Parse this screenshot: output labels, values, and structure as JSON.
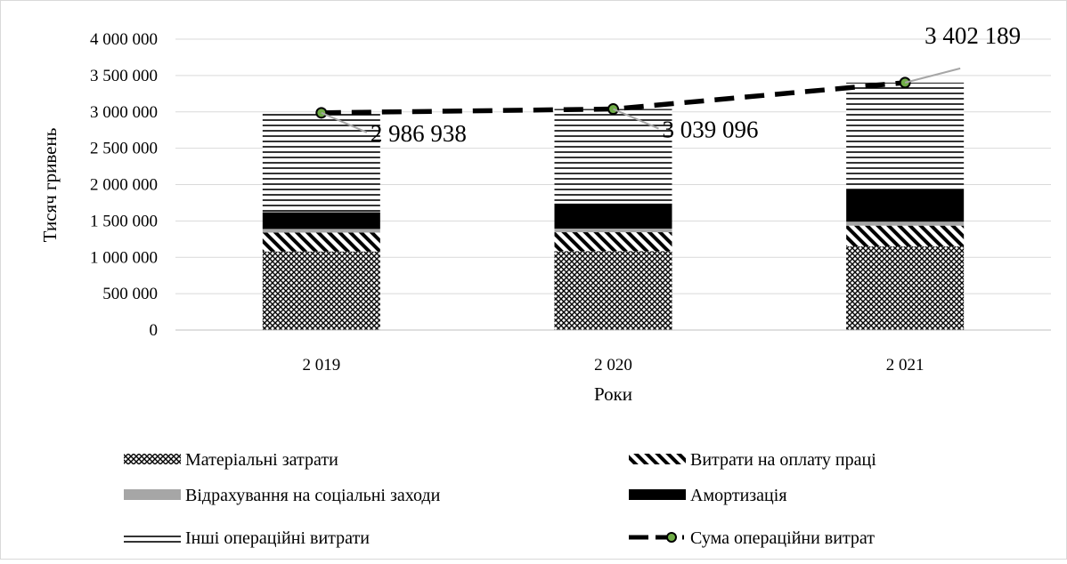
{
  "chart_data": {
    "type": "bar",
    "stacked": true,
    "categories": [
      "2 019",
      "2 020",
      "2 021"
    ],
    "series": [
      {
        "name": "Матеріальні затрати",
        "values": [
          1080000,
          1085000,
          1150000
        ],
        "pattern": "crosshatch"
      },
      {
        "name": "Витрати на оплату праці",
        "values": [
          260000,
          260000,
          285000
        ],
        "pattern": "diagonal"
      },
      {
        "name": "Відрахування на соціальні заходи",
        "values": [
          50000,
          50000,
          55000
        ],
        "pattern": "solid-gray",
        "color": "#a6a6a6"
      },
      {
        "name": "Амортизація",
        "values": [
          230000,
          345000,
          450000
        ],
        "pattern": "solid-black",
        "color": "#000000"
      },
      {
        "name": "Інші операційні витрати",
        "values": [
          1366938,
          1299096,
          1462189
        ],
        "pattern": "horizontal-lines"
      }
    ],
    "line_series": {
      "name": "Сума операційни витрат",
      "values": [
        2986938,
        3039096,
        3402189
      ],
      "labels": [
        "2 986 938",
        "3 039 096",
        "3 402 189"
      ],
      "style": "dashed",
      "color": "#000000",
      "marker_color": "#70ad47"
    },
    "xlabel": "Роки",
    "ylabel": "Тисяч гривень",
    "ylim": [
      0,
      4000000
    ],
    "yticks": [
      0,
      500000,
      1000000,
      1500000,
      2000000,
      2500000,
      3000000,
      3500000,
      4000000
    ],
    "ytick_labels": [
      "0",
      "500 000",
      "1 000 000",
      "1 500 000",
      "2 000 000",
      "2 500 000",
      "3 000 000",
      "3 500 000",
      "4 000 000"
    ],
    "grid": true,
    "legend_position": "bottom"
  }
}
